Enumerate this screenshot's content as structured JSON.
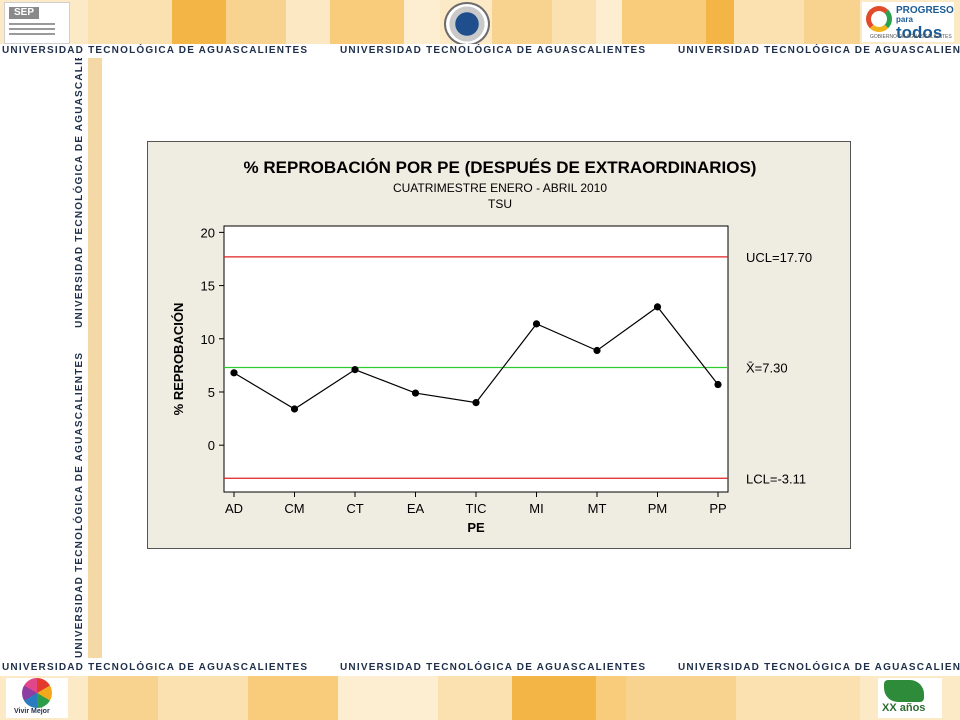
{
  "header": {
    "sep_logo_text": "SEP",
    "progreso_line1": "PROGRESO",
    "progreso_line2": "para",
    "progreso_line3": "todos",
    "progreso_sub": "GOBIERNO DE AGUASCALIENTES"
  },
  "university_label": "UNIVERSIDAD TECNOLÓGICA DE AGUASCALIENTES",
  "footer": {
    "vivir_mejor": "Vivir Mejor",
    "ut_label": "XX años"
  },
  "colors": {
    "banner_bg": "#fce9c6",
    "banner_tile_orange": "#f4b547",
    "chart_bg": "#efece2",
    "control_limit": "#e02020",
    "center_line": "#2ecc2e",
    "data_line": "#000000"
  },
  "chart_data": {
    "type": "line",
    "title": "% REPROBACIÓN POR PE (DESPUÉS DE EXTRAORDINARIOS)",
    "subtitle1": "CUATRIMESTRE ENERO - ABRIL 2010",
    "subtitle2": "TSU",
    "xlabel": "PE",
    "ylabel": "% REPROBACIÓN",
    "categories": [
      "AD",
      "CM",
      "CT",
      "EA",
      "TIC",
      "MI",
      "MT",
      "PM",
      "PP"
    ],
    "values": [
      6.8,
      3.4,
      7.1,
      4.9,
      4.0,
      11.4,
      8.9,
      13.0,
      5.7
    ],
    "ylim": [
      -4.4,
      20.6
    ],
    "yticks": [
      0,
      5,
      10,
      15,
      20
    ],
    "reference_lines": [
      {
        "label": "UCL=17.70",
        "value": 17.7,
        "color": "#e02020"
      },
      {
        "label": "X̄=7.30",
        "value": 7.3,
        "color": "#2ecc2e"
      },
      {
        "label": "LCL=-3.11",
        "value": -3.11,
        "color": "#e02020"
      }
    ],
    "grid": false,
    "legend": "none"
  }
}
